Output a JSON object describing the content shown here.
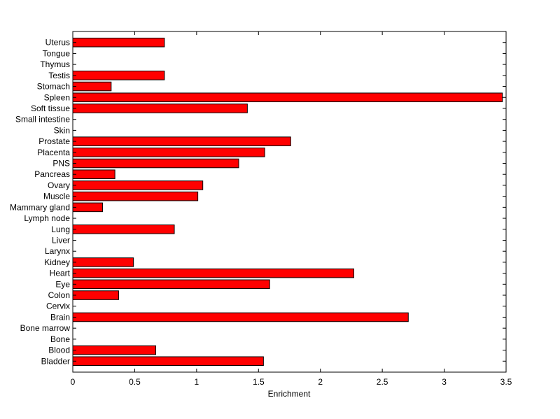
{
  "chart_data": {
    "type": "bar",
    "orientation": "horizontal",
    "title": "",
    "xlabel": "Enrichment",
    "ylabel": "",
    "xlim": [
      0,
      3.5
    ],
    "xticks": [
      "0",
      "0.5",
      "1",
      "1.5",
      "2",
      "2.5",
      "3",
      "3.5"
    ],
    "grid": false,
    "bar_color": "#ff0000",
    "bar_edge_color": "#000000",
    "categories": [
      "Uterus",
      "Tongue",
      "Thymus",
      "Testis",
      "Stomach",
      "Spleen",
      "Soft tissue",
      "Small intestine",
      "Skin",
      "Prostate",
      "Placenta",
      "PNS",
      "Pancreas",
      "Ovary",
      "Muscle",
      "Mammary gland",
      "Lymph node",
      "Lung",
      "Liver",
      "Larynx",
      "Kidney",
      "Heart",
      "Eye",
      "Colon",
      "Cervix",
      "Brain",
      "Bone marrow",
      "Bone",
      "Blood",
      "Bladder"
    ],
    "values": [
      0.74,
      0,
      0,
      0.74,
      0.31,
      3.47,
      1.41,
      0,
      0,
      1.76,
      1.55,
      1.34,
      0.34,
      1.05,
      1.01,
      0.24,
      0,
      0.82,
      0,
      0,
      0.49,
      2.27,
      1.59,
      0.37,
      0,
      2.71,
      0,
      0,
      0.67,
      1.54
    ]
  }
}
